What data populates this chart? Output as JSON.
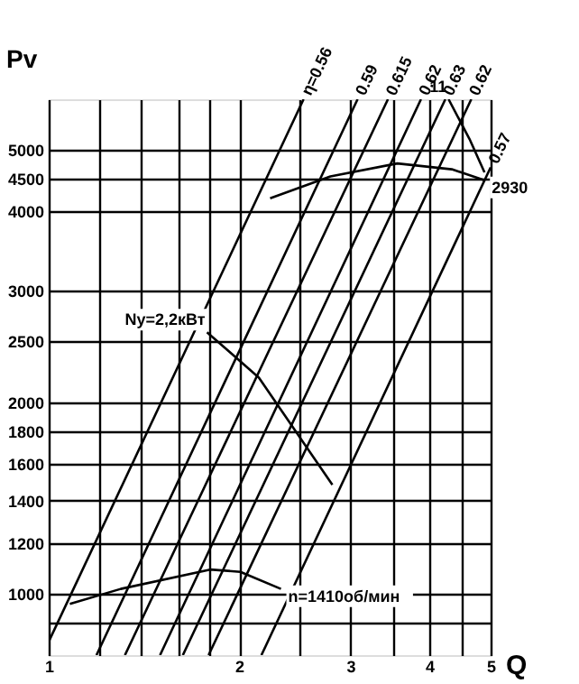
{
  "chart_data": {
    "type": "line",
    "xlabel": "Q",
    "ylabel": "Pv",
    "log": "xy",
    "grid": true,
    "xlim": [
      1,
      5
    ],
    "ylim": [
      800,
      6000
    ],
    "xticks": [
      1,
      {
        "value": 1.2,
        "label": null
      },
      {
        "value": 1.4,
        "label": null
      },
      {
        "value": 1.6,
        "label": null
      },
      {
        "value": 1.8,
        "label": null
      },
      2,
      {
        "value": 2.5,
        "label": null
      },
      3,
      {
        "value": 3.5,
        "label": null
      },
      4,
      {
        "value": 4.5,
        "label": null
      },
      5
    ],
    "yticks": [
      {
        "value": 900,
        "label": null
      },
      1000,
      1200,
      1400,
      1600,
      1800,
      2000,
      2500,
      3000,
      4000,
      4500,
      5000
    ],
    "series": [
      {
        "name": "n=1410об/мин",
        "color": "#000000",
        "x": [
          1.08,
          1.3,
          1.8,
          2.01,
          2.33
        ],
        "values": [
          963,
          1017,
          1091,
          1082,
          1017
        ]
      },
      {
        "name": "2930",
        "color": "#000000",
        "x": [
          2.24,
          2.79,
          3.56,
          4.34,
          4.89
        ],
        "values": [
          4190,
          4535,
          4755,
          4655,
          4475
        ]
      },
      {
        "name": "Ny=2,2кВт",
        "color": "#000000",
        "x": [
          2.81,
          2.15,
          1.78
        ],
        "values": [
          1483,
          2188,
          2578
        ]
      },
      {
        "name": "11",
        "color": "#000000",
        "x": [
          4.89,
          4.63,
          4.29
        ],
        "values": [
          4603,
          5195,
          6000
        ]
      },
      {
        "name": "η=0.56",
        "color": "#000000",
        "x": [
          1,
          2.53
        ],
        "values": [
          840,
          6000
        ]
      },
      {
        "name": "0.59",
        "color": "#000000",
        "x": [
          1.19,
          3.08
        ],
        "values": [
          800,
          6000
        ]
      },
      {
        "name": "0.615",
        "color": "#000000",
        "x": [
          1.32,
          3.44
        ],
        "values": [
          800,
          6000
        ]
      },
      {
        "name": "0.62",
        "color": "#000000",
        "x": [
          1.5,
          3.88
        ],
        "values": [
          800,
          6000
        ]
      },
      {
        "name": "0.63",
        "color": "#000000",
        "x": [
          1.63,
          4.24
        ],
        "values": [
          800,
          6000
        ]
      },
      {
        "name": "0.62",
        "color": "#000000",
        "x": [
          1.79,
          4.66
        ],
        "values": [
          800,
          6000
        ]
      },
      {
        "name": "0.57",
        "color": "#000000",
        "x": [
          2.17,
          5
        ],
        "values": [
          800,
          4686
        ]
      }
    ]
  }
}
